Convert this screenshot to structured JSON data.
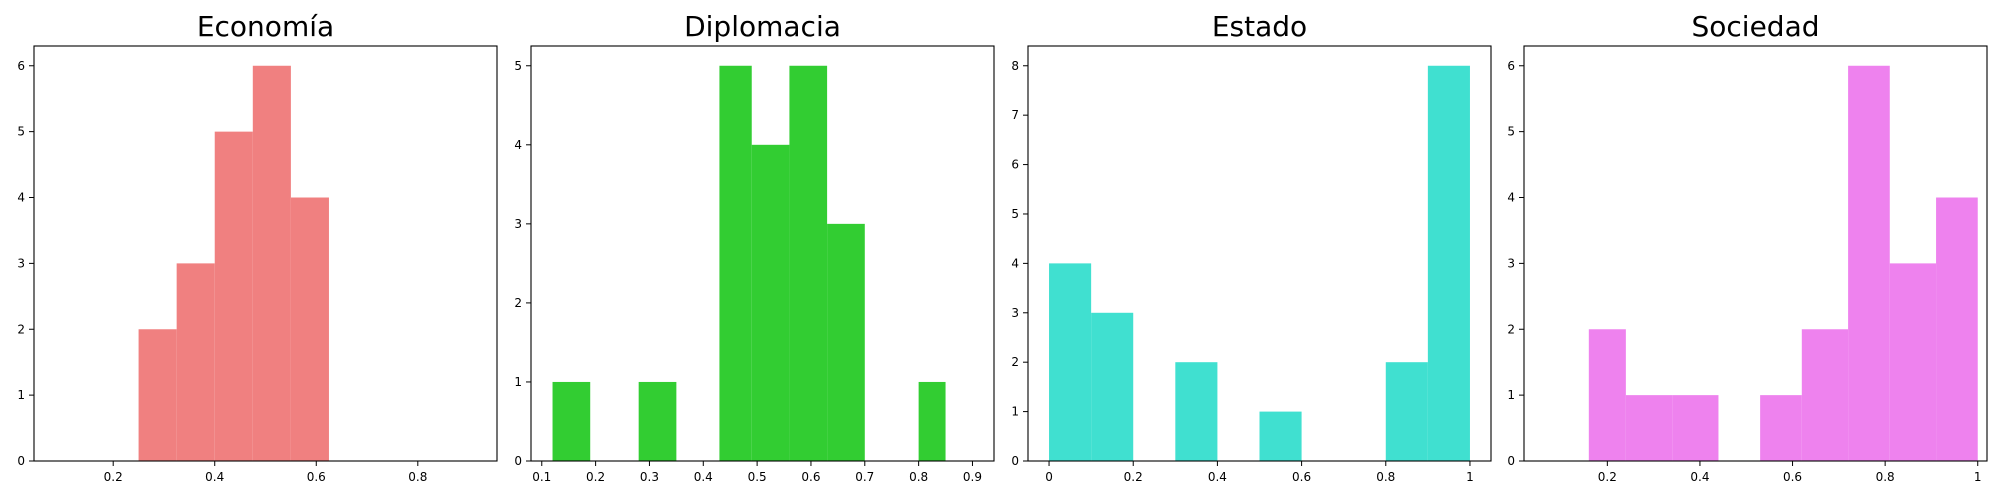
{
  "chart_data": [
    {
      "type": "bar",
      "title": "Economía",
      "xlabel": "",
      "ylabel": "",
      "color": "#f08080",
      "xlim": [
        0.044,
        0.956
      ],
      "ylim": [
        0,
        6.3
      ],
      "xticks": [
        0.2,
        0.4,
        0.6,
        0.8
      ],
      "yticks": [
        0,
        1,
        2,
        3,
        4,
        5,
        6
      ],
      "bins": [
        {
          "x0": 0.25,
          "x1": 0.325,
          "count": 2
        },
        {
          "x0": 0.325,
          "x1": 0.4,
          "count": 3
        },
        {
          "x0": 0.4,
          "x1": 0.475,
          "count": 5
        },
        {
          "x0": 0.475,
          "x1": 0.55,
          "count": 6
        },
        {
          "x0": 0.55,
          "x1": 0.625,
          "count": 4
        }
      ]
    },
    {
      "type": "bar",
      "title": "Diplomacia",
      "xlabel": "",
      "ylabel": "",
      "color": "#32cd32",
      "xlim": [
        0.08,
        0.94
      ],
      "ylim": [
        0,
        5.25
      ],
      "xticks": [
        0.1,
        0.2,
        0.3,
        0.4,
        0.5,
        0.6,
        0.7,
        0.8,
        0.9
      ],
      "yticks": [
        0,
        1,
        2,
        3,
        4,
        5
      ],
      "bins": [
        {
          "x0": 0.12,
          "x1": 0.19,
          "count": 1
        },
        {
          "x0": 0.28,
          "x1": 0.35,
          "count": 1
        },
        {
          "x0": 0.43,
          "x1": 0.49,
          "count": 5
        },
        {
          "x0": 0.49,
          "x1": 0.56,
          "count": 4
        },
        {
          "x0": 0.56,
          "x1": 0.63,
          "count": 5
        },
        {
          "x0": 0.63,
          "x1": 0.7,
          "count": 3
        },
        {
          "x0": 0.8,
          "x1": 0.85,
          "count": 1
        }
      ]
    },
    {
      "type": "bar",
      "title": "Estado",
      "xlabel": "",
      "ylabel": "",
      "color": "#40e0d0",
      "xlim": [
        -0.05,
        1.05
      ],
      "ylim": [
        0,
        8.4
      ],
      "xticks": [
        0.0,
        0.2,
        0.4,
        0.6,
        0.8,
        1.0
      ],
      "yticks": [
        0,
        1,
        2,
        3,
        4,
        5,
        6,
        7,
        8
      ],
      "bins": [
        {
          "x0": 0.0,
          "x1": 0.1,
          "count": 4
        },
        {
          "x0": 0.1,
          "x1": 0.2,
          "count": 3
        },
        {
          "x0": 0.3,
          "x1": 0.4,
          "count": 2
        },
        {
          "x0": 0.5,
          "x1": 0.6,
          "count": 1
        },
        {
          "x0": 0.8,
          "x1": 0.9,
          "count": 2
        },
        {
          "x0": 0.9,
          "x1": 1.0,
          "count": 8
        }
      ]
    },
    {
      "type": "bar",
      "title": "Sociedad",
      "xlabel": "",
      "ylabel": "",
      "color": "#ee82ee",
      "xlim": [
        0.02,
        1.02
      ],
      "ylim": [
        0,
        6.3
      ],
      "xticks": [
        0.2,
        0.4,
        0.6,
        0.8,
        1.0
      ],
      "yticks": [
        0,
        1,
        2,
        3,
        4,
        5,
        6
      ],
      "bins": [
        {
          "x0": 0.16,
          "x1": 0.24,
          "count": 2
        },
        {
          "x0": 0.24,
          "x1": 0.34,
          "count": 1
        },
        {
          "x0": 0.34,
          "x1": 0.44,
          "count": 1
        },
        {
          "x0": 0.53,
          "x1": 0.62,
          "count": 1
        },
        {
          "x0": 0.62,
          "x1": 0.72,
          "count": 2
        },
        {
          "x0": 0.72,
          "x1": 0.81,
          "count": 6
        },
        {
          "x0": 0.81,
          "x1": 0.91,
          "count": 3
        },
        {
          "x0": 0.91,
          "x1": 1.0,
          "count": 4
        }
      ]
    }
  ]
}
